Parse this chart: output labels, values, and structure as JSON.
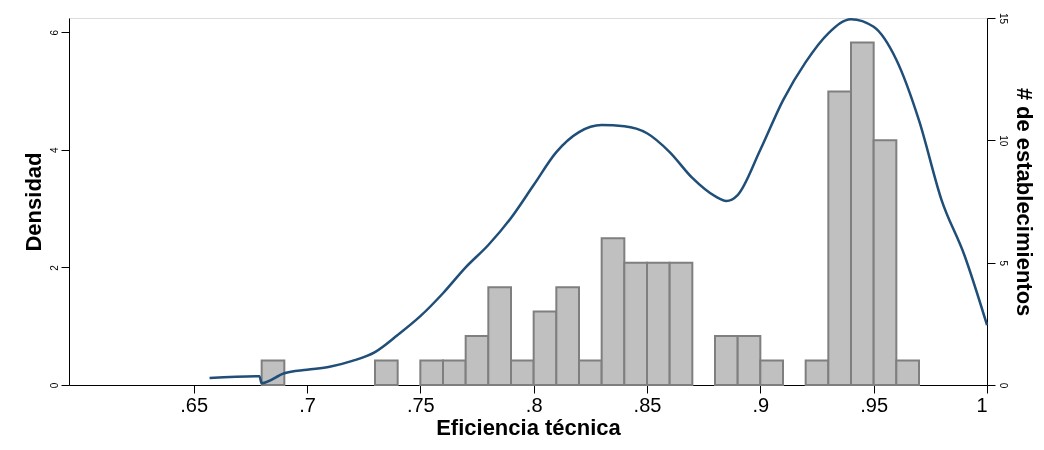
{
  "chart_data": {
    "type": "histogram",
    "xlabel": "Eficiencia técnica",
    "ylabel": "Densidad",
    "y2label": "# de establecimientos",
    "xlim": [
      0.595,
      1
    ],
    "xticks": [
      {
        "value": 0.65,
        "label": ".65"
      },
      {
        "value": 0.7,
        "label": ".7"
      },
      {
        "value": 0.75,
        "label": ".75"
      },
      {
        "value": 0.8,
        "label": ".8"
      },
      {
        "value": 0.85,
        "label": ".85"
      },
      {
        "value": 0.9,
        "label": ".9"
      },
      {
        "value": 0.95,
        "label": ".95"
      },
      {
        "value": 1,
        "label": "1"
      }
    ],
    "ylim": [
      0,
      6.24
    ],
    "yticks": [
      0,
      2,
      4,
      6
    ],
    "y2lim": [
      0,
      15
    ],
    "y2ticks": [
      0,
      5,
      10,
      15
    ],
    "grid": false,
    "series": [
      {
        "axis": "y2",
        "color": "#c0c0c0",
        "bins": [
          0.68,
          0.69,
          0.7,
          0.71,
          0.72,
          0.73,
          0.74,
          0.75,
          0.76,
          0.77,
          0.78,
          0.79,
          0.8,
          0.81,
          0.82,
          0.83,
          0.84,
          0.85,
          0.86,
          0.87,
          0.88,
          0.89,
          0.9,
          0.91,
          0.92,
          0.93,
          0.94,
          0.95,
          0.96,
          0.97
        ],
        "values": [
          1,
          0,
          0,
          0,
          0,
          1,
          0,
          1,
          1,
          2,
          4,
          1,
          3,
          4,
          1,
          6,
          5,
          5,
          5,
          0,
          2,
          2,
          1,
          0,
          1,
          12,
          14,
          10,
          1
        ]
      },
      {
        "type": "line",
        "axis": "y",
        "color": "#1f4e79",
        "x": [
          0.657,
          0.679,
          0.68,
          0.69,
          0.7,
          0.71,
          0.72,
          0.73,
          0.74,
          0.75,
          0.76,
          0.77,
          0.78,
          0.79,
          0.8,
          0.81,
          0.82,
          0.83,
          0.84,
          0.85,
          0.86,
          0.87,
          0.88,
          0.885,
          0.89,
          0.9,
          0.91,
          0.92,
          0.93,
          0.94,
          0.95,
          0.96,
          0.97,
          0.98,
          0.99,
          1.0
        ],
        "values": [
          0.12,
          0.15,
          0.03,
          0.2,
          0.26,
          0.31,
          0.41,
          0.56,
          0.85,
          1.17,
          1.56,
          2.0,
          2.38,
          2.84,
          3.4,
          3.96,
          4.3,
          4.42,
          4.4,
          4.28,
          3.96,
          3.52,
          3.21,
          3.13,
          3.23,
          4.0,
          4.84,
          5.49,
          5.98,
          6.22,
          6.09,
          5.53,
          4.5,
          3.14,
          2.21,
          1.02
        ]
      }
    ]
  }
}
